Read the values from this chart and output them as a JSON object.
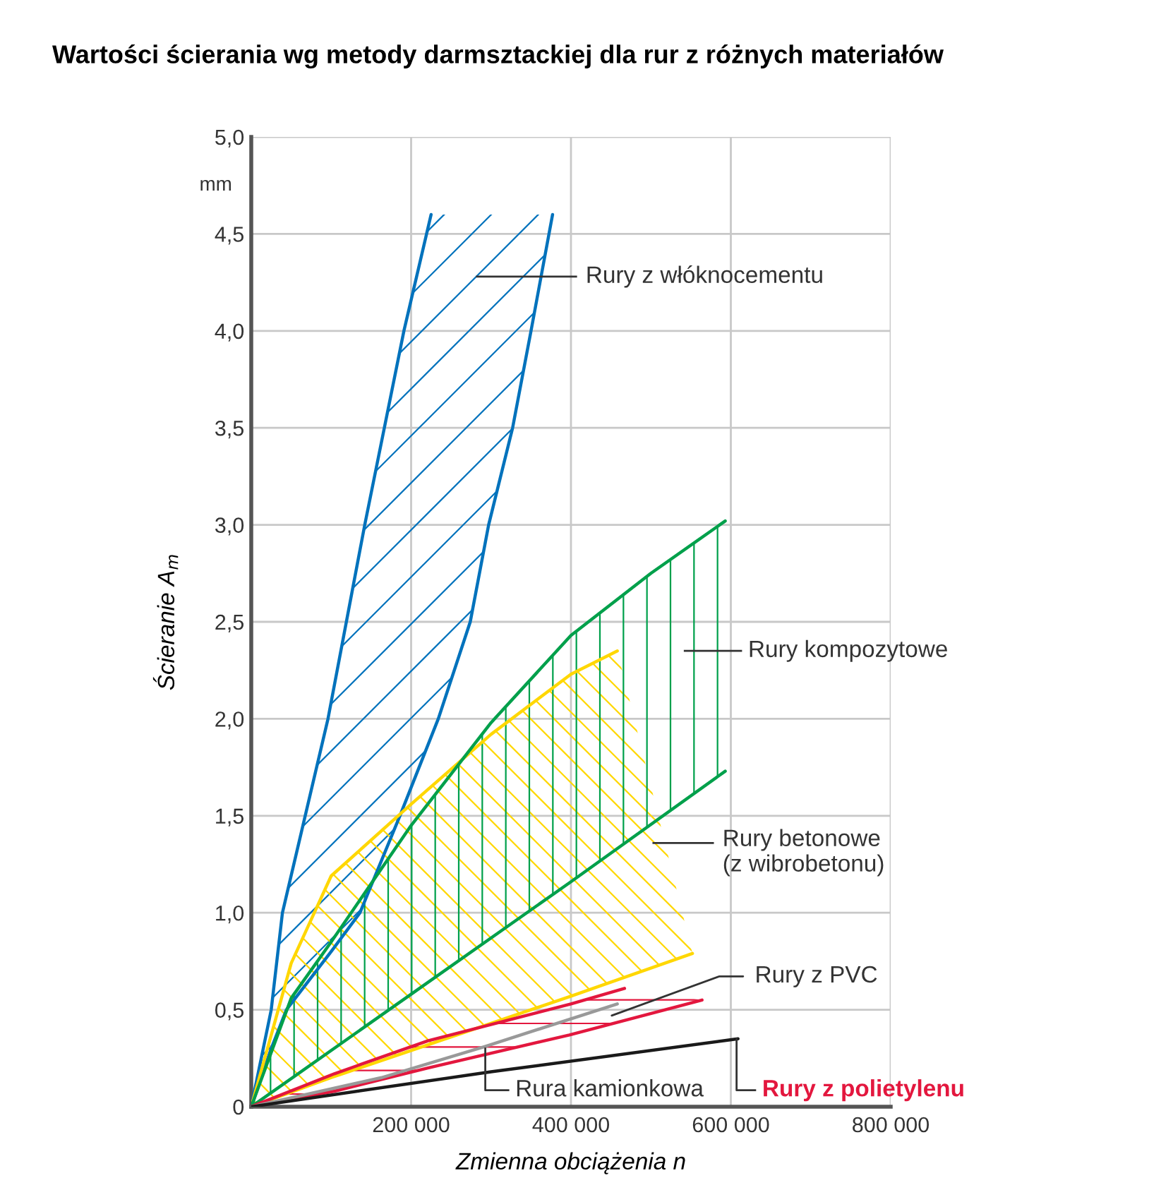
{
  "chart_data": {
    "type": "line",
    "title": "Wartości ścierania wg metody darmsztackiej dla rur z różnych materiałów",
    "xlabel": "Zmienna obciążenia n",
    "ylabel": "Ścieranie A$_{m}$",
    "xlim": [
      0,
      800000
    ],
    "xticks": [
      {
        "value": 0,
        "label": null
      },
      {
        "value": 200000,
        "label": "200 000"
      },
      {
        "value": 400000,
        "label": "400 000"
      },
      {
        "value": 600000,
        "label": "600 000"
      },
      {
        "value": 800000,
        "label": "800 000"
      }
    ],
    "ylim": [
      0,
      5.0
    ],
    "yticks": [
      0,
      {
        "value": 0.5,
        "label": "0,5"
      },
      {
        "value": 1.0,
        "label": "1,0"
      },
      {
        "value": 1.5,
        "label": "1,5"
      },
      {
        "value": 2.0,
        "label": "2,0"
      },
      {
        "value": 2.5,
        "label": "2,5"
      },
      {
        "value": 3.0,
        "label": "3,0"
      },
      {
        "value": 3.5,
        "label": "3,5"
      },
      {
        "value": 4.0,
        "label": "4,0"
      },
      {
        "value": 4.5,
        "label": "4,5"
      },
      {
        "value": 5.0,
        "label": "5,0"
      }
    ],
    "grid": true,
    "series": [
      {
        "color": "#0072bc",
        "x": [
          0,
          25000,
          39000,
          96000,
          142000,
          191000,
          225000
        ],
        "values": [
          0,
          0.5,
          1.0,
          2.0,
          3.0,
          4.0,
          4.6
        ]
      },
      {
        "color": "#0072bc",
        "x": [
          0,
          25000,
          44000,
          100000,
          136000,
          186000,
          234000,
          274000,
          297000,
          327000,
          350000,
          377000
        ],
        "values": [
          0,
          0.3,
          0.5,
          0.8,
          1.0,
          1.5,
          2.0,
          2.5,
          3.0,
          3.5,
          4.0,
          4.6
        ]
      },
      {
        "color": "#ffd700",
        "x": [
          0,
          50000,
          100000,
          200000,
          300000,
          400000,
          458000
        ],
        "values": [
          0,
          0.74,
          1.19,
          1.56,
          1.92,
          2.23,
          2.35
        ]
      },
      {
        "color": "#ffd700",
        "x": [
          0,
          100000,
          200000,
          300000,
          400000,
          552000
        ],
        "values": [
          0,
          0.15,
          0.29,
          0.43,
          0.57,
          0.79
        ]
      },
      {
        "color": "#00a04b",
        "x": [
          0,
          50000,
          100000,
          200000,
          300000,
          400000,
          500000,
          593000
        ],
        "values": [
          0,
          0.56,
          0.85,
          1.45,
          1.98,
          2.43,
          2.75,
          3.02
        ]
      },
      {
        "color": "#00a04b",
        "x": [
          0,
          200000,
          400000,
          593000
        ],
        "values": [
          0,
          0.58,
          1.16,
          1.73
        ]
      },
      {
        "color": "#e3173e",
        "x": [
          0,
          104000,
          221000,
          400000,
          467000
        ],
        "values": [
          0,
          0.17,
          0.34,
          0.53,
          0.61
        ]
      },
      {
        "color": "#e3173e",
        "x": [
          0,
          104000,
          221000,
          398000,
          564000
        ],
        "values": [
          0,
          0.08,
          0.2,
          0.37,
          0.55
        ]
      },
      {
        "color": "#999999",
        "x": [
          0,
          163000,
          292000,
          458000
        ],
        "values": [
          0,
          0.15,
          0.31,
          0.53
        ]
      },
      {
        "color": "#1a1a1a",
        "x": [
          0,
          300000,
          609000
        ],
        "values": [
          0,
          0.18,
          0.35
        ]
      }
    ],
    "annotations": [
      "mm",
      "Rury z włóknocementu",
      "Rury kompozytowe",
      "Rury betonowe\n(z wibrobetonu)",
      {
        "text": "Rury z PVC",
        "x": 451000,
        "y": 0.47
      },
      "Rura kamionkowa",
      "Rury z polietylenu"
    ]
  }
}
